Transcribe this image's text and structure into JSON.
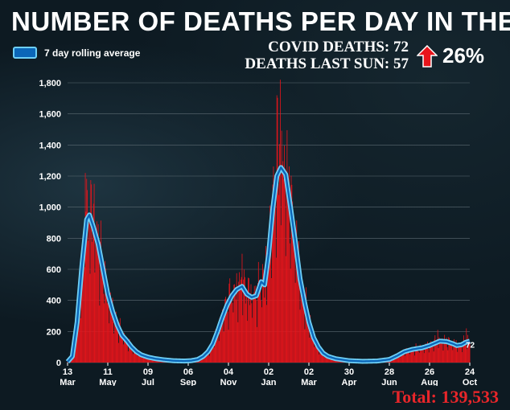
{
  "title": "NUMBER OF DEATHS PER DAY IN THE UK",
  "legend": {
    "label": "7 day rolling average"
  },
  "stats": {
    "covid_deaths": "COVID DEATHS: 72",
    "deaths_last_sun": "DEATHS LAST SUN: 57",
    "change_pct": "26%"
  },
  "total": "Total: 139,533",
  "colors": {
    "bars": "#e8151b",
    "line_outer": "#6ecff6",
    "line_inner": "#0b66b8",
    "background": "#0d1a22",
    "arrow": "#e8151b"
  },
  "icons": {
    "change": "up-arrow-icon"
  },
  "chart_data": {
    "type": "bar",
    "title": "NUMBER OF DEATHS PER DAY IN THE UK",
    "ylim": [
      0,
      1800
    ],
    "yticks": [
      0,
      200,
      400,
      600,
      800,
      1000,
      1200,
      1400,
      1600,
      1800
    ],
    "ytick_labels": [
      "0",
      "200",
      "400",
      "600",
      "800",
      "1,000",
      "1,200",
      "1,400",
      "1,600",
      "1,800"
    ],
    "xlim": [
      "2020-03-13",
      "2021-10-24"
    ],
    "xticks": [
      {
        "date": "2020-03-13",
        "day": "13",
        "month": "Mar"
      },
      {
        "date": "2020-05-11",
        "day": "11",
        "month": "May"
      },
      {
        "date": "2020-07-09",
        "day": "09",
        "month": "Jul"
      },
      {
        "date": "2020-09-06",
        "day": "06",
        "month": "Sep"
      },
      {
        "date": "2020-11-04",
        "day": "04",
        "month": "Nov"
      },
      {
        "date": "2021-01-02",
        "day": "02",
        "month": "Jan"
      },
      {
        "date": "2021-03-02",
        "day": "02",
        "month": "Mar"
      },
      {
        "date": "2021-04-30",
        "day": "30",
        "month": "Apr"
      },
      {
        "date": "2021-06-28",
        "day": "28",
        "month": "Jun"
      },
      {
        "date": "2021-08-26",
        "day": "26",
        "month": "Aug"
      },
      {
        "date": "2021-10-24",
        "day": "24",
        "month": "Oct"
      }
    ],
    "grid": true,
    "legend_position": "top-left",
    "series": [
      {
        "name": "7 day rolling average",
        "type": "line",
        "points": [
          [
            "2020-03-13",
            5
          ],
          [
            "2020-03-20",
            40
          ],
          [
            "2020-03-27",
            260
          ],
          [
            "2020-04-03",
            620
          ],
          [
            "2020-04-10",
            920
          ],
          [
            "2020-04-14",
            950
          ],
          [
            "2020-04-20",
            870
          ],
          [
            "2020-04-27",
            760
          ],
          [
            "2020-05-04",
            600
          ],
          [
            "2020-05-11",
            440
          ],
          [
            "2020-05-18",
            330
          ],
          [
            "2020-05-25",
            240
          ],
          [
            "2020-06-01",
            175
          ],
          [
            "2020-06-08",
            140
          ],
          [
            "2020-06-15",
            100
          ],
          [
            "2020-06-22",
            70
          ],
          [
            "2020-06-29",
            50
          ],
          [
            "2020-07-09",
            35
          ],
          [
            "2020-07-20",
            25
          ],
          [
            "2020-08-01",
            18
          ],
          [
            "2020-08-15",
            12
          ],
          [
            "2020-08-31",
            10
          ],
          [
            "2020-09-10",
            12
          ],
          [
            "2020-09-20",
            20
          ],
          [
            "2020-09-28",
            40
          ],
          [
            "2020-10-05",
            70
          ],
          [
            "2020-10-12",
            120
          ],
          [
            "2020-10-19",
            200
          ],
          [
            "2020-10-26",
            290
          ],
          [
            "2020-11-02",
            370
          ],
          [
            "2020-11-09",
            430
          ],
          [
            "2020-11-16",
            470
          ],
          [
            "2020-11-24",
            490
          ],
          [
            "2020-12-01",
            440
          ],
          [
            "2020-12-08",
            420
          ],
          [
            "2020-12-15",
            430
          ],
          [
            "2020-12-22",
            520
          ],
          [
            "2020-12-27",
            500
          ],
          [
            "2021-01-02",
            700
          ],
          [
            "2021-01-08",
            990
          ],
          [
            "2021-01-14",
            1200
          ],
          [
            "2021-01-20",
            1255
          ],
          [
            "2021-01-27",
            1210
          ],
          [
            "2021-02-03",
            1000
          ],
          [
            "2021-02-10",
            780
          ],
          [
            "2021-02-17",
            540
          ],
          [
            "2021-02-24",
            380
          ],
          [
            "2021-03-02",
            260
          ],
          [
            "2021-03-09",
            160
          ],
          [
            "2021-03-16",
            100
          ],
          [
            "2021-03-23",
            60
          ],
          [
            "2021-03-30",
            40
          ],
          [
            "2021-04-10",
            25
          ],
          [
            "2021-04-30",
            12
          ],
          [
            "2021-05-20",
            8
          ],
          [
            "2021-06-10",
            10
          ],
          [
            "2021-06-28",
            20
          ],
          [
            "2021-07-10",
            45
          ],
          [
            "2021-07-20",
            70
          ],
          [
            "2021-08-01",
            85
          ],
          [
            "2021-08-15",
            95
          ],
          [
            "2021-08-26",
            110
          ],
          [
            "2021-09-03",
            125
          ],
          [
            "2021-09-10",
            138
          ],
          [
            "2021-09-20",
            135
          ],
          [
            "2021-09-30",
            120
          ],
          [
            "2021-10-05",
            110
          ],
          [
            "2021-10-12",
            115
          ],
          [
            "2021-10-18",
            130
          ],
          [
            "2021-10-24",
            138
          ]
        ],
        "end_label": "72"
      },
      {
        "name": "daily deaths",
        "type": "bar",
        "peaks": [
          [
            "2020-04-08",
            1220
          ],
          [
            "2020-04-21",
            1150
          ],
          [
            "2021-01-19",
            1820
          ],
          [
            "2021-01-14",
            1720
          ],
          [
            "2020-11-24",
            700
          ],
          [
            "2020-12-29",
            750
          ],
          [
            "2021-09-07",
            210
          ],
          [
            "2021-10-19",
            220
          ]
        ]
      }
    ]
  }
}
